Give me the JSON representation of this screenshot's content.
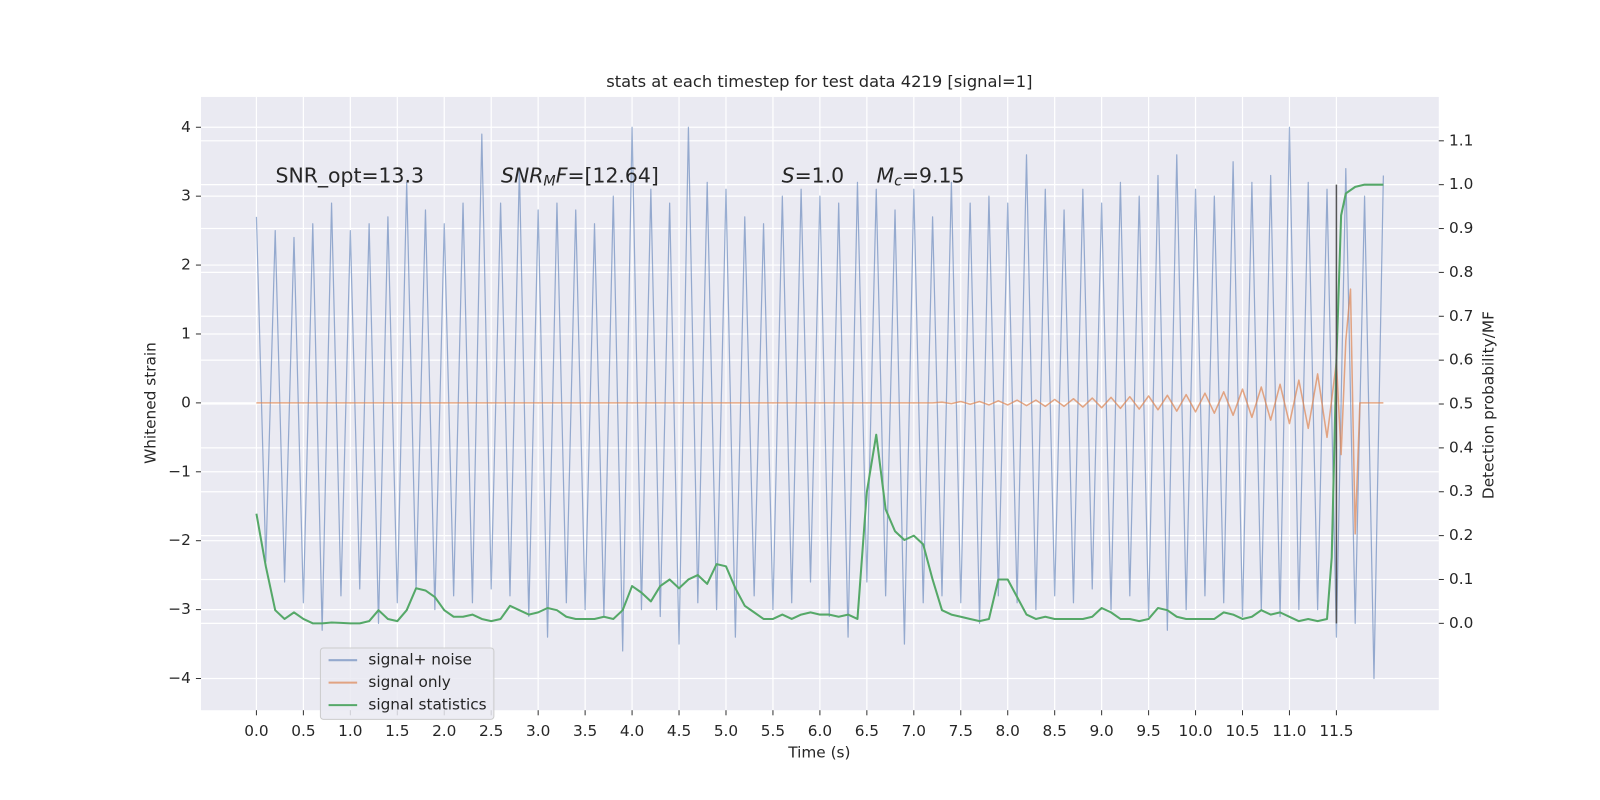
{
  "chart_data": {
    "type": "line",
    "title": "stats at each timestep for test data 4219 [signal=1]",
    "x_label": "Time (s)",
    "y_label": "Whitened strain",
    "y2_label": "Detection probability/MF",
    "xlim": [
      -0.59,
      12.59
    ],
    "ylim": [
      -4.46,
      4.44
    ],
    "y2lim": [
      -0.198,
      1.2
    ],
    "xticks": [
      {
        "value": 0,
        "label": "0.0"
      },
      0.5,
      {
        "value": 1,
        "label": "1.0"
      },
      1.5,
      {
        "value": 2,
        "label": "2.0"
      },
      2.5,
      {
        "value": 3,
        "label": "3.0"
      },
      3.5,
      {
        "value": 4,
        "label": "4.0"
      },
      4.5,
      {
        "value": 5,
        "label": "5.0"
      },
      5.5,
      {
        "value": 6,
        "label": "6.0"
      },
      6.5,
      {
        "value": 7,
        "label": "7.0"
      },
      7.5,
      {
        "value": 8,
        "label": "8.0"
      },
      8.5,
      {
        "value": 9,
        "label": "9.0"
      },
      9.5,
      {
        "value": 10,
        "label": "10.0"
      },
      10.5,
      {
        "value": 11,
        "label": "11.0"
      },
      11.5
    ],
    "yticks": [
      {
        "value": -4,
        "label": "−4"
      },
      {
        "value": -3,
        "label": "−3"
      },
      {
        "value": -2,
        "label": "−2"
      },
      {
        "value": -1,
        "label": "−1"
      },
      0,
      1,
      2,
      3,
      4
    ],
    "y2ticks": [
      {
        "value": 0,
        "label": "0.0"
      },
      0.1,
      0.2,
      0.3,
      0.4,
      0.5,
      0.6,
      0.7,
      0.8,
      0.9,
      {
        "value": 1,
        "label": "1.0"
      },
      1.1
    ],
    "grid": true,
    "legend": "lower left",
    "annotations": [
      {
        "parts": [
          {
            "text": "SNR_opt=13.3"
          }
        ]
      },
      {
        "parts": [
          {
            "text": "SNR",
            "style": "italic"
          },
          {
            "text": "M",
            "style": "italic-sub"
          },
          {
            "text": "F",
            "style": "italic"
          },
          {
            "text": "=[12.64]"
          }
        ]
      },
      {
        "parts": [
          {
            "text": "S",
            "style": "italic"
          },
          {
            "text": "=1.0"
          }
        ]
      },
      {
        "parts": [
          {
            "text": "M",
            "style": "italic"
          },
          {
            "text": "c",
            "style": "italic-sub"
          },
          {
            "text": "=9.15"
          }
        ]
      }
    ],
    "vline": {
      "x": 11.5,
      "y": [
        0,
        1
      ],
      "color": "#555555"
    },
    "series": [
      {
        "name": "signal+ noise",
        "color": "#4c72b0",
        "axis": "y",
        "x": [
          0,
          0.1,
          0.2,
          0.3,
          0.4,
          0.5,
          0.6,
          0.7,
          0.8,
          0.9,
          1,
          1.1,
          1.2,
          1.3,
          1.4,
          1.5,
          1.6,
          1.7,
          1.8,
          1.9,
          2,
          2.1,
          2.2,
          2.3,
          2.4,
          2.5,
          2.6,
          2.7,
          2.8,
          2.9,
          3,
          3.1,
          3.2,
          3.3,
          3.4,
          3.5,
          3.6,
          3.7,
          3.8,
          3.9,
          4,
          4.1,
          4.2,
          4.3,
          4.4,
          4.5,
          4.6,
          4.7,
          4.8,
          4.9,
          5,
          5.1,
          5.2,
          5.3,
          5.4,
          5.5,
          5.6,
          5.7,
          5.8,
          5.9,
          6,
          6.1,
          6.2,
          6.3,
          6.4,
          6.5,
          6.6,
          6.7,
          6.8,
          6.9,
          7,
          7.1,
          7.2,
          7.3,
          7.4,
          7.5,
          7.6,
          7.7,
          7.8,
          7.9,
          8,
          8.1,
          8.2,
          8.3,
          8.4,
          8.5,
          8.6,
          8.7,
          8.8,
          8.9,
          9,
          9.1,
          9.2,
          9.3,
          9.4,
          9.5,
          9.6,
          9.7,
          9.8,
          9.9,
          10,
          10.1,
          10.2,
          10.3,
          10.4,
          10.5,
          10.6,
          10.7,
          10.8,
          10.9,
          11,
          11.1,
          11.2,
          11.3,
          11.4,
          11.5,
          11.6,
          11.7,
          11.8,
          11.9,
          12
        ],
        "values": [
          2.7,
          -2.3,
          2.5,
          -2.6,
          2.4,
          -2.9,
          2.6,
          -3.3,
          2.9,
          -2.8,
          2.5,
          -2.7,
          2.6,
          -3.2,
          2.7,
          -2.9,
          3.2,
          -2.7,
          2.8,
          -3.0,
          2.6,
          -2.8,
          2.9,
          -2.9,
          3.9,
          -2.7,
          2.9,
          -2.8,
          3.4,
          -3.1,
          2.8,
          -3.4,
          2.9,
          -2.9,
          2.8,
          -3.0,
          2.6,
          -3.1,
          3.0,
          -3.6,
          4.0,
          -3.0,
          3.1,
          -3.1,
          2.9,
          -3.5,
          4.0,
          -2.9,
          3.2,
          -3.0,
          3.1,
          -3.4,
          2.7,
          -2.8,
          2.6,
          -3.0,
          3.0,
          -2.9,
          3.1,
          -2.6,
          3.0,
          -3.1,
          2.9,
          -3.4,
          3.2,
          -2.6,
          3.1,
          -2.8,
          2.8,
          -3.5,
          3.1,
          -2.9,
          2.7,
          -2.8,
          3.2,
          -2.9,
          2.9,
          -3.2,
          3.0,
          -2.8,
          2.9,
          -2.9,
          3.6,
          -3.0,
          3.1,
          -2.8,
          2.8,
          -2.9,
          3.1,
          -2.7,
          2.9,
          -3.0,
          3.2,
          -2.8,
          3.0,
          -3.1,
          3.3,
          -3.3,
          3.6,
          -3.0,
          3.1,
          -2.8,
          3.0,
          -2.9,
          3.5,
          -3.1,
          3.2,
          -3.0,
          3.3,
          -3.1,
          4.0,
          -3.0,
          3.2,
          -3.0,
          3.1,
          -3.4,
          3.4,
          -3.2,
          3.0,
          -4.0,
          3.3
        ]
      },
      {
        "name": "signal only",
        "color": "#dd8452",
        "axis": "y",
        "x": [
          0,
          7.2,
          7.3,
          7.4,
          7.5,
          7.6,
          7.7,
          7.8,
          7.9,
          8,
          8.1,
          8.2,
          8.3,
          8.4,
          8.5,
          8.6,
          8.7,
          8.8,
          8.9,
          9,
          9.1,
          9.2,
          9.3,
          9.4,
          9.5,
          9.6,
          9.7,
          9.8,
          9.9,
          10,
          10.1,
          10.2,
          10.3,
          10.4,
          10.5,
          10.6,
          10.7,
          10.8,
          10.9,
          11,
          11.1,
          11.2,
          11.3,
          11.4,
          11.5,
          11.55,
          11.6,
          11.65,
          11.7,
          11.75,
          12
        ],
        "values": [
          0,
          0,
          0.01,
          -0.01,
          0.02,
          -0.02,
          0.02,
          -0.03,
          0.03,
          -0.03,
          0.04,
          -0.04,
          0.04,
          -0.05,
          0.05,
          -0.05,
          0.06,
          -0.06,
          0.07,
          -0.07,
          0.08,
          -0.08,
          0.09,
          -0.09,
          0.1,
          -0.1,
          0.11,
          -0.12,
          0.12,
          -0.13,
          0.14,
          -0.15,
          0.16,
          -0.18,
          0.2,
          -0.21,
          0.23,
          -0.25,
          0.27,
          -0.3,
          0.33,
          -0.37,
          0.42,
          -0.5,
          0.6,
          -0.75,
          0.9,
          1.65,
          -1.9,
          0,
          0
        ]
      },
      {
        "name": "signal statistics",
        "color": "#55a868",
        "axis": "y2",
        "x": [
          0,
          0.1,
          0.2,
          0.3,
          0.4,
          0.5,
          0.6,
          0.7,
          0.8,
          0.9,
          1,
          1.1,
          1.2,
          1.3,
          1.4,
          1.5,
          1.6,
          1.7,
          1.8,
          1.9,
          2,
          2.1,
          2.2,
          2.3,
          2.4,
          2.5,
          2.6,
          2.7,
          2.8,
          2.9,
          3,
          3.1,
          3.2,
          3.3,
          3.4,
          3.5,
          3.6,
          3.7,
          3.8,
          3.9,
          4,
          4.1,
          4.2,
          4.3,
          4.4,
          4.5,
          4.6,
          4.7,
          4.8,
          4.9,
          5,
          5.1,
          5.2,
          5.3,
          5.4,
          5.5,
          5.6,
          5.7,
          5.8,
          5.9,
          6,
          6.1,
          6.2,
          6.3,
          6.4,
          6.5,
          6.6,
          6.7,
          6.8,
          6.9,
          7,
          7.1,
          7.2,
          7.3,
          7.4,
          7.5,
          7.6,
          7.7,
          7.8,
          7.9,
          8,
          8.1,
          8.2,
          8.3,
          8.4,
          8.5,
          8.6,
          8.7,
          8.8,
          8.9,
          9,
          9.1,
          9.2,
          9.3,
          9.4,
          9.5,
          9.6,
          9.7,
          9.8,
          9.9,
          10,
          10.1,
          10.2,
          10.3,
          10.4,
          10.5,
          10.6,
          10.7,
          10.8,
          10.9,
          11,
          11.1,
          11.2,
          11.3,
          11.4,
          11.45,
          11.5,
          11.55,
          11.6,
          11.7,
          11.8,
          11.9,
          12
        ],
        "values": [
          0.25,
          0.13,
          0.03,
          0.01,
          0.025,
          0.01,
          0,
          0,
          0.002,
          0.001,
          0,
          0,
          0.005,
          0.03,
          0.01,
          0.005,
          0.03,
          0.08,
          0.075,
          0.06,
          0.03,
          0.015,
          0.015,
          0.02,
          0.01,
          0.005,
          0.01,
          0.04,
          0.03,
          0.02,
          0.025,
          0.035,
          0.03,
          0.015,
          0.01,
          0.01,
          0.01,
          0.015,
          0.01,
          0.03,
          0.085,
          0.07,
          0.05,
          0.085,
          0.1,
          0.08,
          0.1,
          0.11,
          0.09,
          0.135,
          0.13,
          0.08,
          0.04,
          0.025,
          0.01,
          0.01,
          0.02,
          0.01,
          0.02,
          0.025,
          0.02,
          0.02,
          0.015,
          0.02,
          0.01,
          0.3,
          0.43,
          0.26,
          0.21,
          0.19,
          0.2,
          0.18,
          0.1,
          0.03,
          0.02,
          0.015,
          0.01,
          0.005,
          0.01,
          0.1,
          0.1,
          0.06,
          0.02,
          0.01,
          0.015,
          0.01,
          0.01,
          0.01,
          0.01,
          0.015,
          0.035,
          0.025,
          0.01,
          0.01,
          0.005,
          0.01,
          0.035,
          0.03,
          0.015,
          0.01,
          0.01,
          0.01,
          0.01,
          0.025,
          0.02,
          0.01,
          0.015,
          0.03,
          0.02,
          0.025,
          0.015,
          0.005,
          0.01,
          0.005,
          0.01,
          0.15,
          0.6,
          0.93,
          0.98,
          0.995,
          1,
          1,
          1
        ]
      }
    ]
  }
}
